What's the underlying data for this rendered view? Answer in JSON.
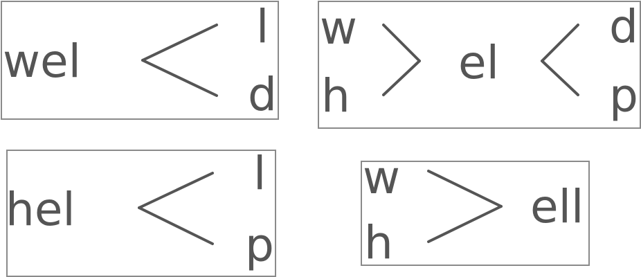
{
  "diagrams": [
    {
      "left": "wel",
      "branches": [
        "l",
        "d"
      ]
    },
    {
      "left_branches": [
        "w",
        "h"
      ],
      "middle": "el",
      "right_branches": [
        "d",
        "p"
      ]
    },
    {
      "left": "hel",
      "branches": [
        "l",
        "p"
      ]
    },
    {
      "left_branches": [
        "w",
        "h"
      ],
      "right": "ell"
    }
  ],
  "colors": {
    "text": "#555555",
    "box_border": "#8a8a8a",
    "background": "#ffffff"
  }
}
